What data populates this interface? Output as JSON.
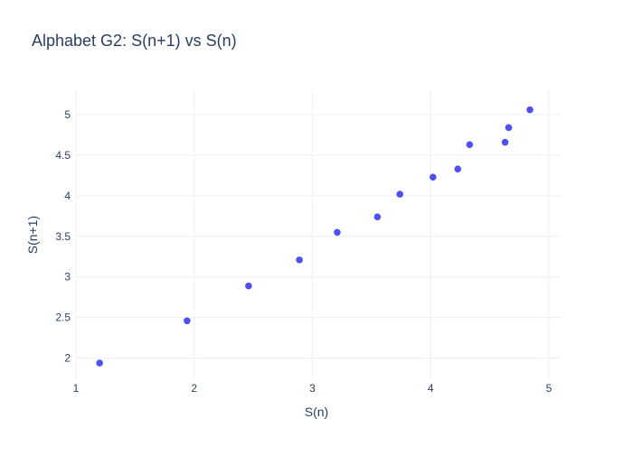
{
  "chart_data": {
    "type": "scatter",
    "title": "Alphabet G2: S(n+1) vs S(n)",
    "xlabel": "S(n)",
    "ylabel": "S(n+1)",
    "xlim": [
      1.0,
      5.1
    ],
    "ylim": [
      1.74,
      5.3
    ],
    "xticks": [
      1,
      2,
      3,
      4,
      5
    ],
    "xtick_labels": [
      "1",
      "2",
      "3",
      "4",
      "5"
    ],
    "yticks": [
      2,
      2.5,
      3,
      3.5,
      4,
      4.5,
      5
    ],
    "ytick_labels": [
      "2",
      "2.5",
      "3",
      "3.5",
      "4",
      "4.5",
      "5"
    ],
    "grid": true,
    "marker_color": "#5050f0",
    "points": [
      {
        "x": 1.2,
        "y": 1.94
      },
      {
        "x": 1.94,
        "y": 2.46
      },
      {
        "x": 2.46,
        "y": 2.89
      },
      {
        "x": 2.89,
        "y": 3.21
      },
      {
        "x": 3.21,
        "y": 3.55
      },
      {
        "x": 3.55,
        "y": 3.74
      },
      {
        "x": 3.74,
        "y": 4.02
      },
      {
        "x": 4.02,
        "y": 4.23
      },
      {
        "x": 4.23,
        "y": 4.33
      },
      {
        "x": 4.33,
        "y": 4.63
      },
      {
        "x": 4.63,
        "y": 4.66
      },
      {
        "x": 4.66,
        "y": 4.84
      },
      {
        "x": 4.84,
        "y": 5.06
      }
    ]
  }
}
